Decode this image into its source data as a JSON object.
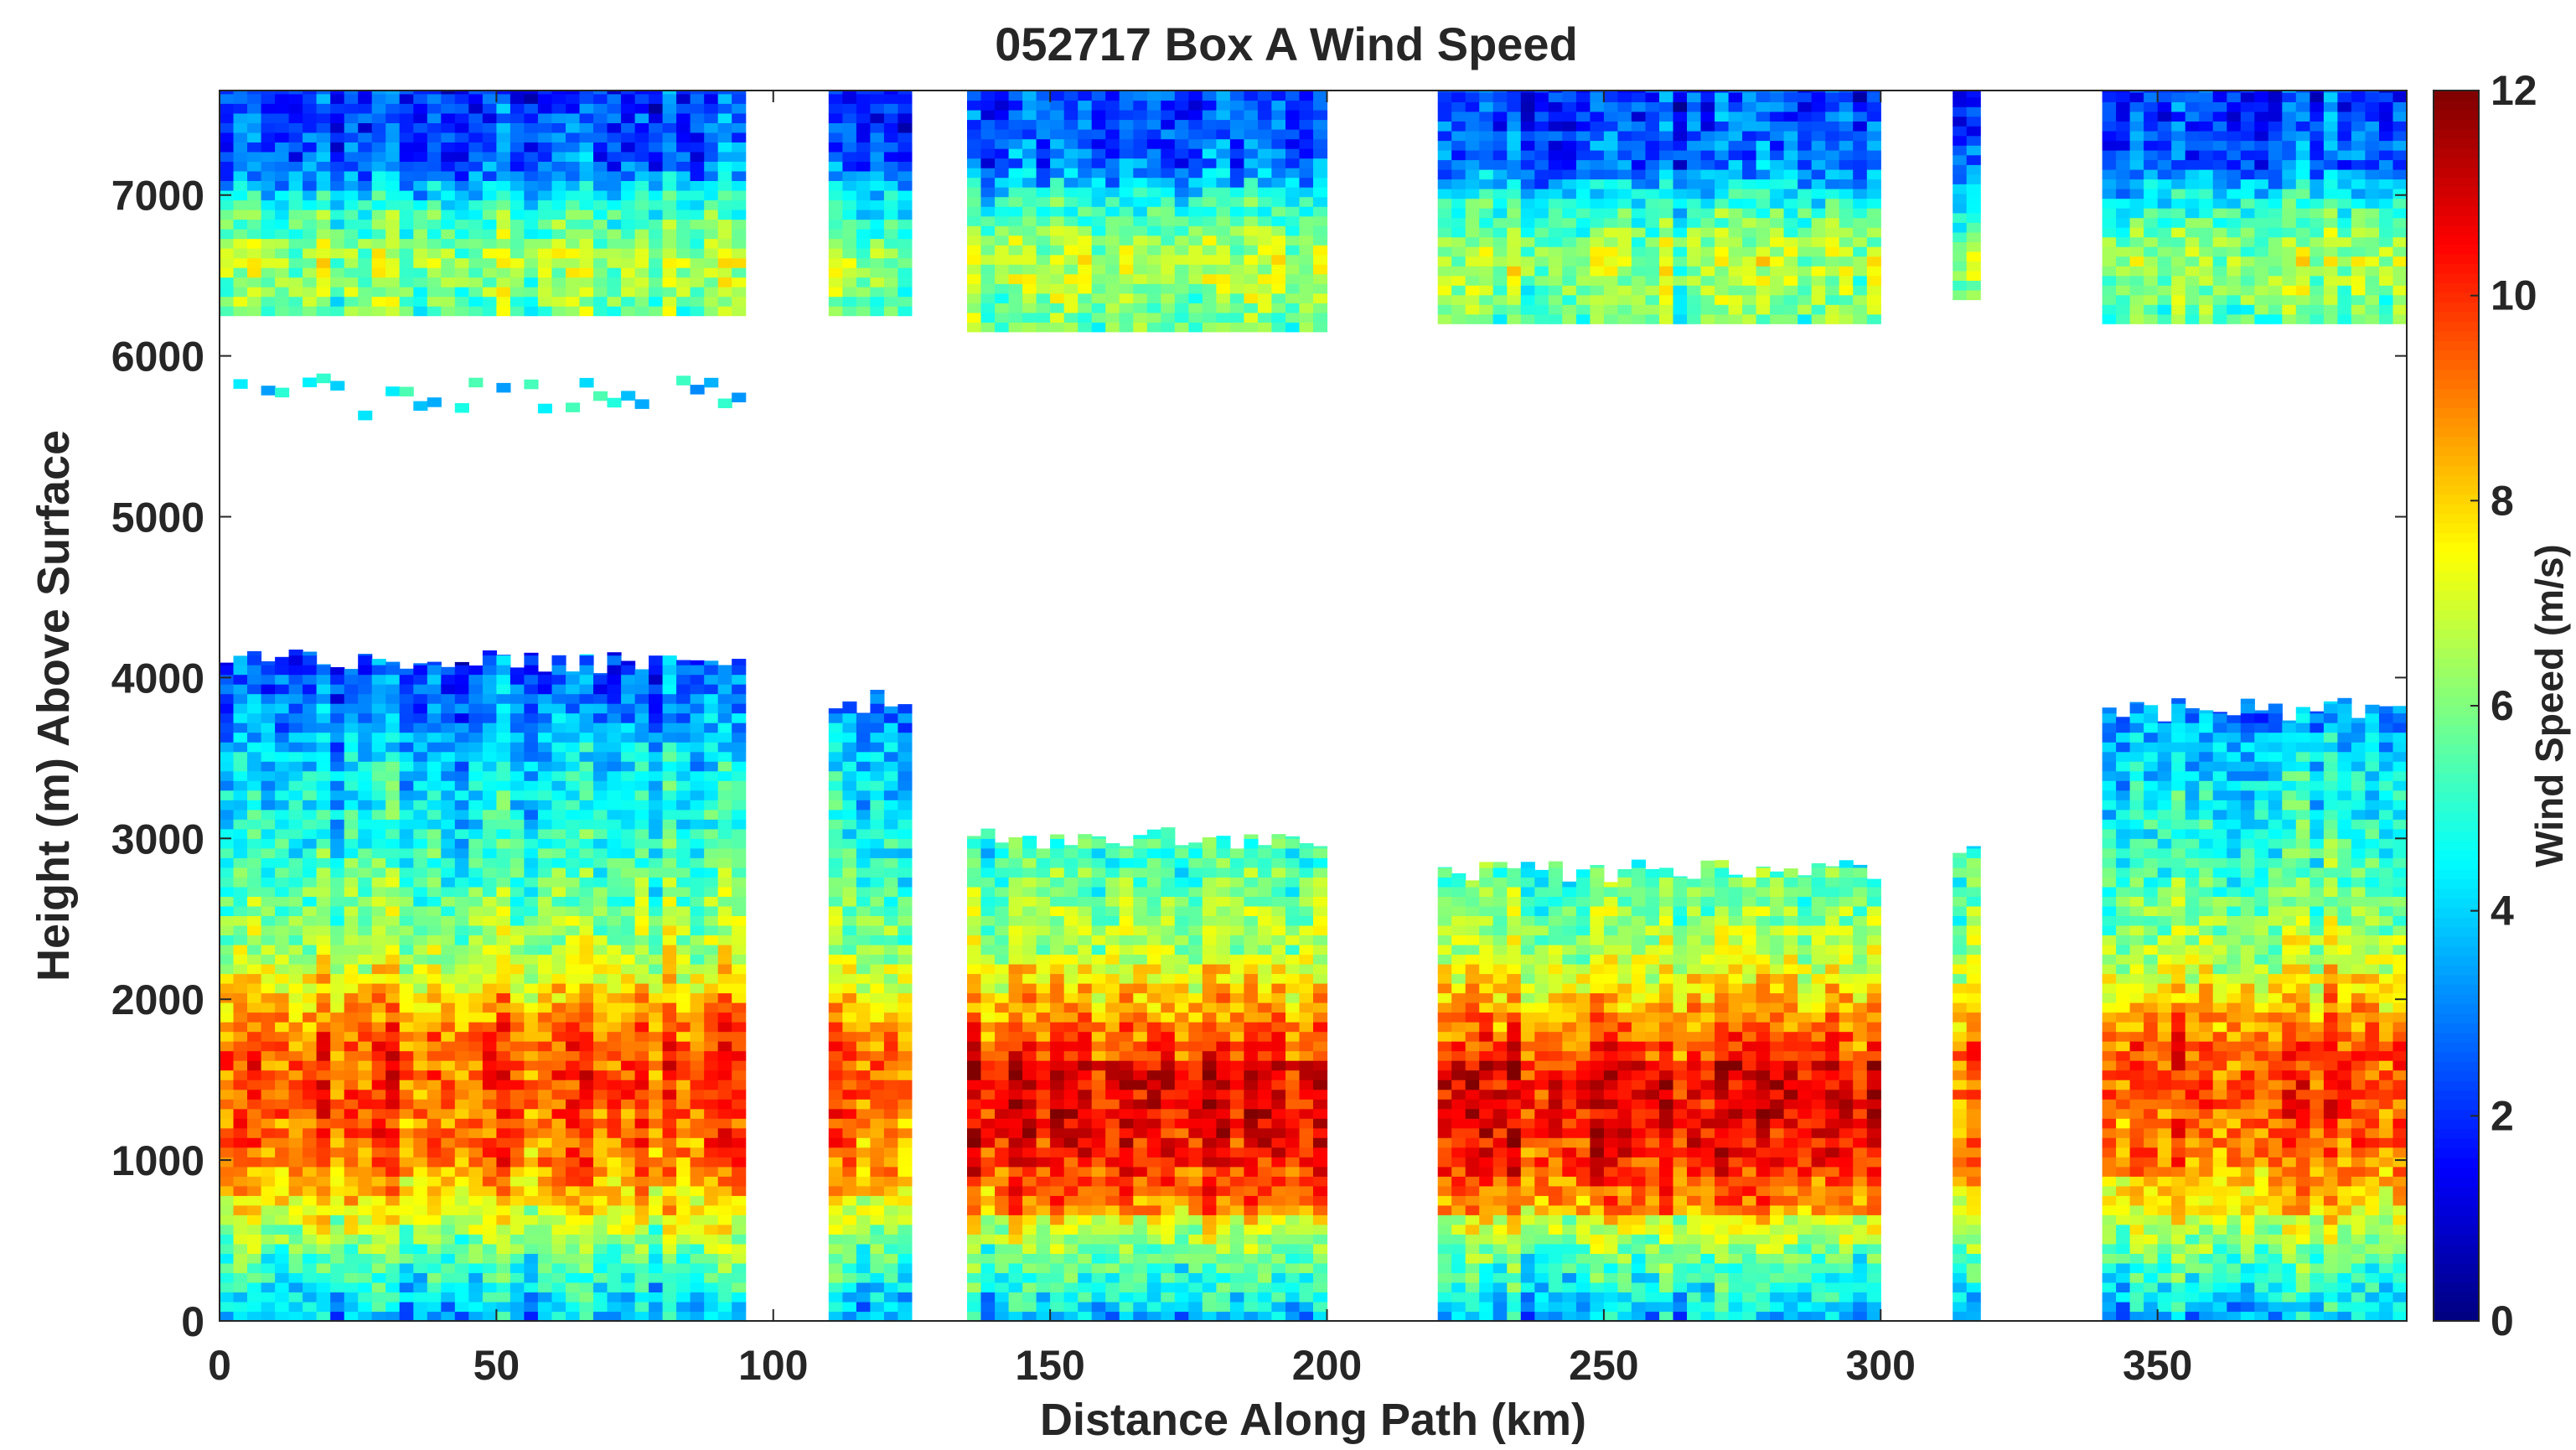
{
  "chart_data": {
    "type": "heatmap",
    "title": "052717 Box A Wind Speed",
    "xlabel": "Distance Along Path (km)",
    "ylabel": "Height (m) Above Surface",
    "xlim": [
      0,
      395
    ],
    "ylim": [
      0,
      7650
    ],
    "x_ticks": [
      0,
      50,
      100,
      150,
      200,
      250,
      300,
      350
    ],
    "y_ticks": [
      0,
      1000,
      2000,
      3000,
      4000,
      5000,
      6000,
      7000
    ],
    "colorbar": {
      "label": "Wind Speed (m/s)",
      "colormap": "jet",
      "range": [
        0,
        12
      ],
      "ticks": [
        0,
        2,
        4,
        6,
        8,
        10,
        12
      ]
    },
    "grid": false,
    "segments": [
      {
        "x0": 0,
        "x1": 95,
        "lower_top": 4100,
        "upper_bottom": 6250,
        "upper_top": 7650,
        "stray_layer": [
          5600,
          5900
        ]
      },
      {
        "x0": 110,
        "x1": 125,
        "lower_top": 3850,
        "upper_bottom": 6250,
        "upper_top": 7650
      },
      {
        "x0": 135,
        "x1": 200,
        "lower_top": 3000,
        "upper_bottom": 6150,
        "upper_top": 7650
      },
      {
        "x0": 220,
        "x1": 300,
        "lower_top": 2800,
        "upper_bottom": 6200,
        "upper_top": 7650
      },
      {
        "x0": 313,
        "x1": 318,
        "lower_top": 2900,
        "upper_bottom": 6350,
        "upper_top": 7650
      },
      {
        "x0": 340,
        "x1": 395,
        "lower_top": 3800,
        "upper_bottom": 6200,
        "upper_top": 7650
      }
    ],
    "vertical_profile": [
      {
        "height_m": 0,
        "speed_ms": 3.5
      },
      {
        "height_m": 150,
        "speed_ms": 4.2
      },
      {
        "height_m": 400,
        "speed_ms": 5.5
      },
      {
        "height_m": 700,
        "speed_ms": 7.5
      },
      {
        "height_m": 1000,
        "speed_ms": 9.0
      },
      {
        "height_m": 1400,
        "speed_ms": 9.5
      },
      {
        "height_m": 1700,
        "speed_ms": 9.5
      },
      {
        "height_m": 2000,
        "speed_ms": 8.0
      },
      {
        "height_m": 2300,
        "speed_ms": 6.5
      },
      {
        "height_m": 2700,
        "speed_ms": 5.5
      },
      {
        "height_m": 3000,
        "speed_ms": 4.8
      },
      {
        "height_m": 3400,
        "speed_ms": 4.2
      },
      {
        "height_m": 3800,
        "speed_ms": 3.0
      },
      {
        "height_m": 4100,
        "speed_ms": 2.3
      },
      {
        "height_m": 6200,
        "speed_ms": 5.5
      },
      {
        "height_m": 6600,
        "speed_ms": 6.5
      },
      {
        "height_m": 6900,
        "speed_ms": 5.0
      },
      {
        "height_m": 7200,
        "speed_ms": 2.5
      },
      {
        "height_m": 7650,
        "speed_ms": 2.0
      }
    ]
  }
}
